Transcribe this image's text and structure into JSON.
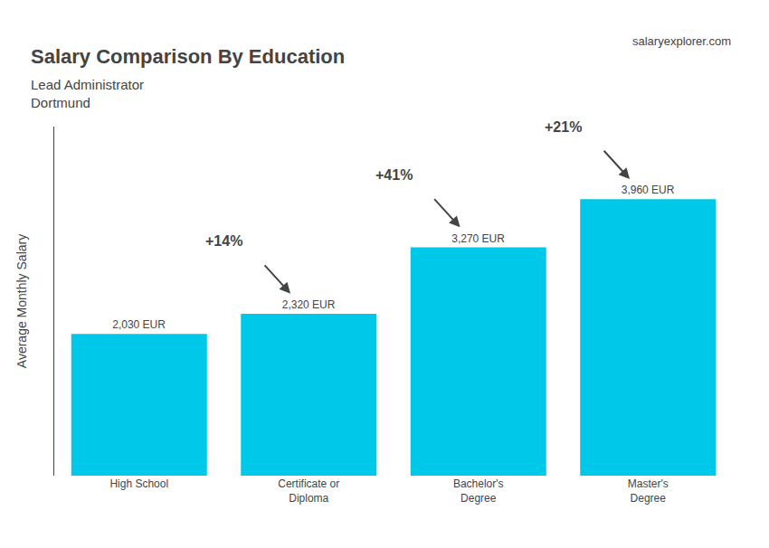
{
  "chart_data": {
    "type": "bar",
    "title": "Salary Comparison By Education",
    "subtitle": [
      "Lead Administrator",
      "Dortmund"
    ],
    "ylabel": "Average Monthly Salary",
    "categories": [
      "High School",
      "Certificate or\nDiploma",
      "Bachelor's\nDegree",
      "Master's\nDegree"
    ],
    "values": [
      2030,
      2320,
      3270,
      3960
    ],
    "value_labels": [
      "2,030 EUR",
      "2,320 EUR",
      "3,270 EUR",
      "3,960 EUR"
    ],
    "data_labels": true,
    "color": "#00c8e8",
    "ylim": [
      0,
      5000
    ],
    "tick_labels": "x",
    "grid": false,
    "annotations": [
      {
        "text": "+14%",
        "from": "High School",
        "to": "Certificate or\nDiploma"
      },
      {
        "text": "+41%",
        "from": "Certificate or\nDiploma",
        "to": "Bachelor's\nDegree"
      },
      {
        "text": "+21%",
        "from": "Bachelor's\nDegree",
        "to": "Master's\nDegree"
      },
      {
        "text": "salaryexplorer.com"
      }
    ]
  }
}
